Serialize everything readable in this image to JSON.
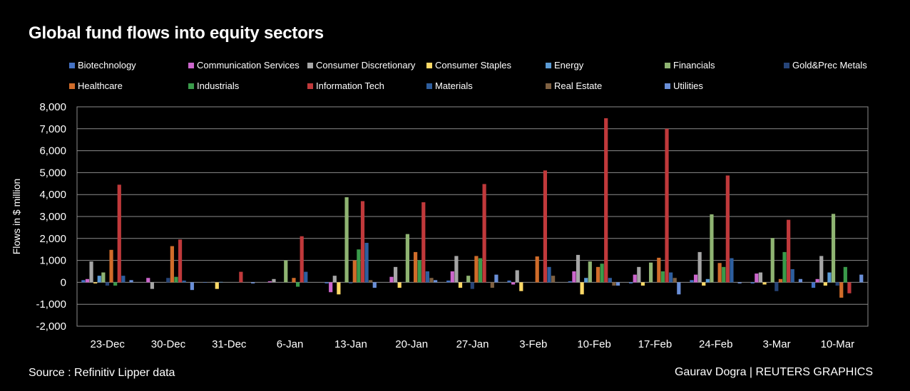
{
  "title": "Global fund flows into equity sectors",
  "source": "Source : Refinitiv Lipper data",
  "credit": "Gaurav Dogra | REUTERS GRAPHICS",
  "chart_data": {
    "type": "bar",
    "ylabel": "Flows in $ million",
    "xlabel": "",
    "ylim": [
      -2000,
      8000
    ],
    "yticks": [
      -2000,
      -1000,
      0,
      1000,
      2000,
      3000,
      4000,
      5000,
      6000,
      7000,
      8000
    ],
    "ytick_labels": [
      "-2,000",
      "-1,000",
      "0",
      "1,000",
      "2,000",
      "3,000",
      "4,000",
      "5,000",
      "6,000",
      "7,000",
      "8,000"
    ],
    "grid": true,
    "legend_position": "top",
    "categories": [
      "23-Dec",
      "30-Dec",
      "31-Dec",
      "6-Jan",
      "13-Jan",
      "20-Jan",
      "27-Jan",
      "3-Feb",
      "10-Feb",
      "17-Feb",
      "24-Feb",
      "3-Mar",
      "10-Mar"
    ],
    "series": [
      {
        "name": "Biotechnology",
        "color": "#4472c4",
        "values": [
          100,
          0,
          -20,
          0,
          -50,
          0,
          80,
          80,
          50,
          -50,
          100,
          -50,
          -250
        ]
      },
      {
        "name": "Communication Services",
        "color": "#cc66cc",
        "values": [
          150,
          200,
          0,
          50,
          -450,
          250,
          500,
          -100,
          500,
          350,
          350,
          400,
          150
        ]
      },
      {
        "name": "Consumer Discretionary",
        "color": "#a6a6a6",
        "values": [
          950,
          -300,
          20,
          150,
          300,
          700,
          1200,
          550,
          1250,
          700,
          1380,
          450,
          1200
        ]
      },
      {
        "name": "Consumer Staples",
        "color": "#ffd966",
        "values": [
          -50,
          0,
          -300,
          0,
          -550,
          -250,
          -250,
          -400,
          -550,
          -150,
          -150,
          -100,
          -150
        ]
      },
      {
        "name": "Energy",
        "color": "#5b9bd5",
        "values": [
          300,
          0,
          20,
          0,
          0,
          0,
          0,
          0,
          200,
          0,
          150,
          0,
          450
        ]
      },
      {
        "name": "Financials",
        "color": "#8fb472",
        "values": [
          450,
          0,
          0,
          1000,
          3880,
          2200,
          300,
          0,
          950,
          900,
          3100,
          2020,
          3120
        ]
      },
      {
        "name": "Gold&Prec Metals",
        "color": "#264478",
        "values": [
          -150,
          200,
          0,
          0,
          -50,
          0,
          -300,
          0,
          0,
          0,
          0,
          -400,
          -150
        ]
      },
      {
        "name": "Healthcare",
        "color": "#d06c2a",
        "values": [
          1480,
          1650,
          0,
          200,
          1000,
          1380,
          1200,
          1180,
          700,
          1120,
          880,
          150,
          -700
        ]
      },
      {
        "name": "Industrials",
        "color": "#3a9b4a",
        "values": [
          -150,
          250,
          0,
          -200,
          1500,
          1000,
          1100,
          0,
          850,
          500,
          700,
          1380,
          700
        ]
      },
      {
        "name": "Information Tech",
        "color": "#c0393b",
        "values": [
          4450,
          1950,
          480,
          2100,
          3700,
          3650,
          4480,
          5100,
          7480,
          7000,
          4870,
          2850,
          -500
        ]
      },
      {
        "name": "Materials",
        "color": "#2e5e9e",
        "values": [
          300,
          80,
          0,
          480,
          1800,
          500,
          0,
          700,
          200,
          450,
          1100,
          600,
          0
        ]
      },
      {
        "name": "Real Estate",
        "color": "#7f6142",
        "values": [
          0,
          0,
          0,
          0,
          100,
          200,
          -250,
          300,
          -150,
          200,
          0,
          0,
          0
        ]
      },
      {
        "name": "Utilities",
        "color": "#6a8fd8",
        "values": [
          100,
          -350,
          -50,
          0,
          -250,
          100,
          350,
          0,
          -150,
          -550,
          -50,
          150,
          350
        ]
      }
    ]
  }
}
